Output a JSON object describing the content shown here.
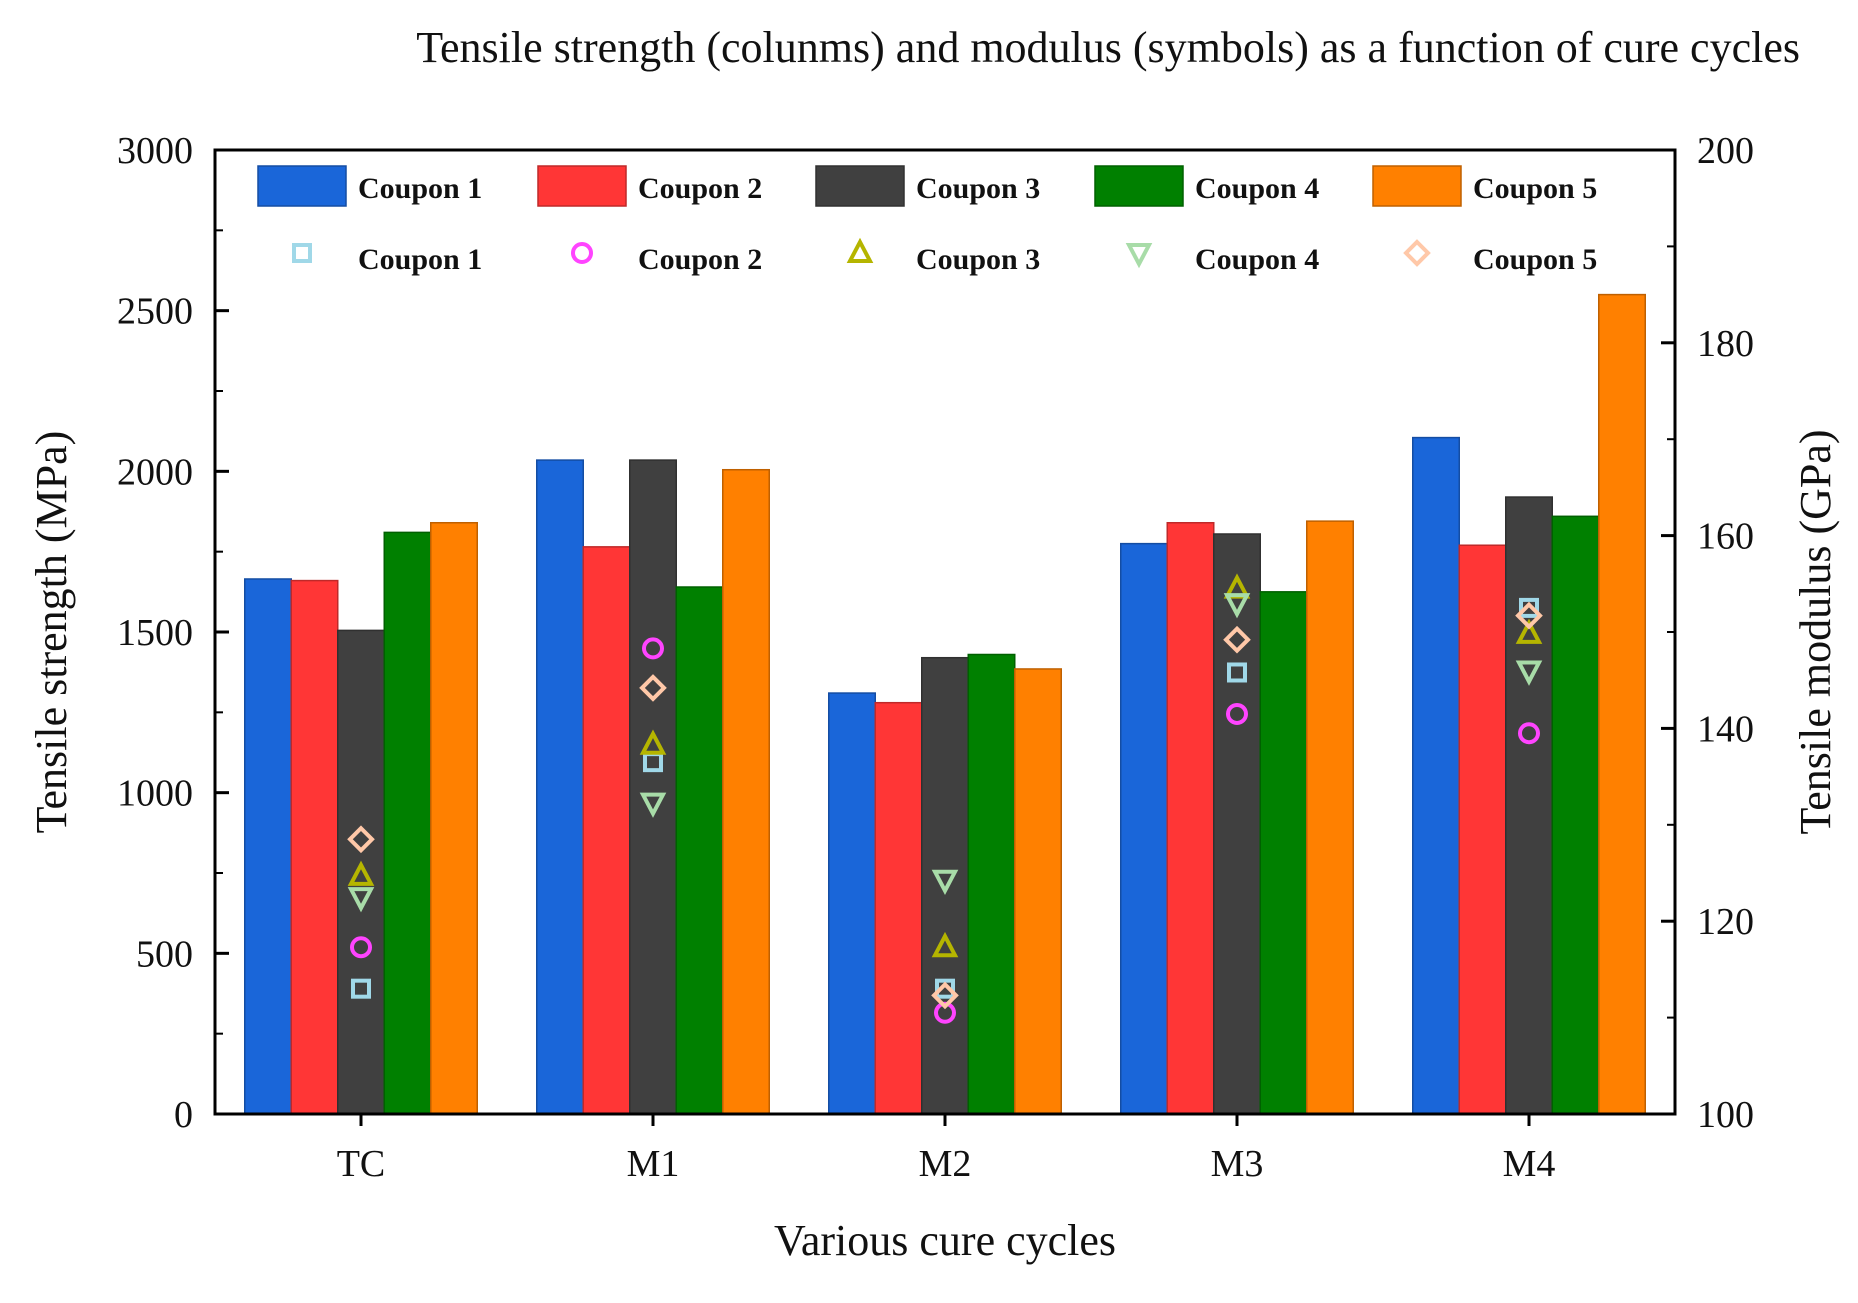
{
  "chart_data": {
    "type": "bar",
    "title": "Tensile strength (colunms) and modulus (symbols) as a function of cure cycles",
    "xlabel": "Various cure cycles",
    "ylabel": "Tensile strength (MPa)",
    "y2label": "Tensile modulus (GPa)",
    "categories": [
      "TC",
      "M1",
      "M2",
      "M3",
      "M4"
    ],
    "ylim": [
      0,
      3000
    ],
    "y2lim": [
      100,
      200
    ],
    "yticks": [
      0,
      500,
      1000,
      1500,
      2000,
      2500,
      3000
    ],
    "y2ticks": [
      100,
      120,
      140,
      160,
      180,
      200
    ],
    "series": [
      {
        "name": "Coupon 1",
        "color": "#1a66d9",
        "values": [
          1665,
          2035,
          1310,
          1775,
          2105
        ]
      },
      {
        "name": "Coupon 2",
        "color": "#ff3636",
        "values": [
          1660,
          1765,
          1280,
          1840,
          1770
        ]
      },
      {
        "name": "Coupon 3",
        "color": "#404040",
        "values": [
          1505,
          2035,
          1420,
          1805,
          1920
        ]
      },
      {
        "name": "Coupon 4",
        "color": "#008000",
        "values": [
          1810,
          1640,
          1430,
          1625,
          1860
        ]
      },
      {
        "name": "Coupon 5",
        "color": "#ff8000",
        "values": [
          1840,
          2005,
          1385,
          1845,
          2550
        ]
      }
    ],
    "modulus_series": [
      {
        "name": "Coupon 1",
        "marker": "square",
        "color": "#a0d8e8",
        "values": [
          113,
          136.5,
          113,
          145.8,
          152.5
        ]
      },
      {
        "name": "Coupon 2",
        "marker": "circle",
        "color": "#ff44ff",
        "values": [
          117.3,
          148.3,
          110.5,
          141.5,
          139.5
        ]
      },
      {
        "name": "Coupon 3",
        "marker": "triangle-up",
        "color": "#b5b500",
        "values": [
          124.7,
          138.3,
          117.3,
          154.5,
          149.8
        ]
      },
      {
        "name": "Coupon 4",
        "marker": "triangle-down",
        "color": "#a8dca8",
        "values": [
          122.5,
          132.3,
          124.3,
          153,
          146
        ]
      },
      {
        "name": "Coupon 5",
        "marker": "diamond",
        "color": "#ffc8a8",
        "values": [
          128.5,
          144.2,
          112.3,
          149.2,
          151.7
        ]
      }
    ]
  }
}
